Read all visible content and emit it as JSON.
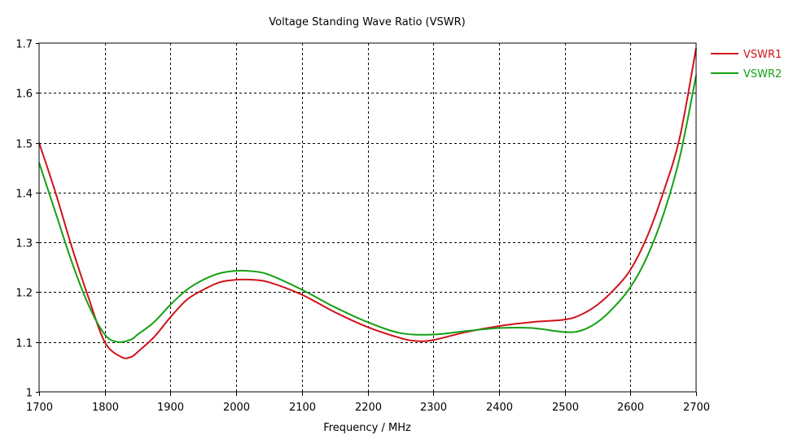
{
  "chart_data": {
    "type": "line",
    "title": "Voltage Standing Wave Ratio (VSWR)",
    "xlabel": "Frequency / MHz",
    "ylabel": "",
    "xlim": [
      1700,
      2700
    ],
    "ylim": [
      1,
      1.7
    ],
    "xticks": [
      1700,
      1800,
      1900,
      2000,
      2100,
      2200,
      2300,
      2400,
      2500,
      2600,
      2700
    ],
    "yticks": [
      1,
      1.1,
      1.2,
      1.3,
      1.4,
      1.5,
      1.6,
      1.7
    ],
    "ytick_labels": [
      "1",
      "1.1",
      "1.2",
      "1.3",
      "1.4",
      "1.5",
      "1.6",
      "1.7"
    ],
    "grid": true,
    "legend_position": "right-top",
    "series": [
      {
        "name": "VSWR1",
        "color": "#d0121a",
        "x": [
          1700,
          1725,
          1750,
          1775,
          1800,
          1825,
          1840,
          1850,
          1875,
          1900,
          1925,
          1950,
          1975,
          2000,
          2025,
          2050,
          2100,
          2150,
          2200,
          2250,
          2275,
          2300,
          2350,
          2400,
          2450,
          2500,
          2525,
          2550,
          2575,
          2600,
          2625,
          2650,
          2675,
          2700
        ],
        "y": [
          1.5,
          1.4,
          1.29,
          1.19,
          1.1,
          1.07,
          1.07,
          1.08,
          1.11,
          1.15,
          1.185,
          1.205,
          1.22,
          1.225,
          1.225,
          1.22,
          1.195,
          1.16,
          1.13,
          1.108,
          1.102,
          1.104,
          1.12,
          1.132,
          1.14,
          1.145,
          1.155,
          1.175,
          1.205,
          1.245,
          1.31,
          1.4,
          1.51,
          1.69
        ]
      },
      {
        "name": "VSWR2",
        "color": "#14a014",
        "x": [
          1700,
          1725,
          1750,
          1775,
          1800,
          1820,
          1840,
          1850,
          1875,
          1900,
          1925,
          1950,
          1975,
          2000,
          2025,
          2050,
          2100,
          2150,
          2200,
          2250,
          2300,
          2350,
          2400,
          2450,
          2500,
          2525,
          2550,
          2575,
          2600,
          2625,
          2650,
          2675,
          2700
        ],
        "y": [
          1.46,
          1.36,
          1.26,
          1.175,
          1.115,
          1.1,
          1.105,
          1.115,
          1.14,
          1.175,
          1.205,
          1.225,
          1.238,
          1.243,
          1.242,
          1.235,
          1.205,
          1.17,
          1.14,
          1.118,
          1.115,
          1.122,
          1.128,
          1.128,
          1.12,
          1.123,
          1.14,
          1.17,
          1.21,
          1.27,
          1.355,
          1.47,
          1.635
        ]
      }
    ]
  }
}
